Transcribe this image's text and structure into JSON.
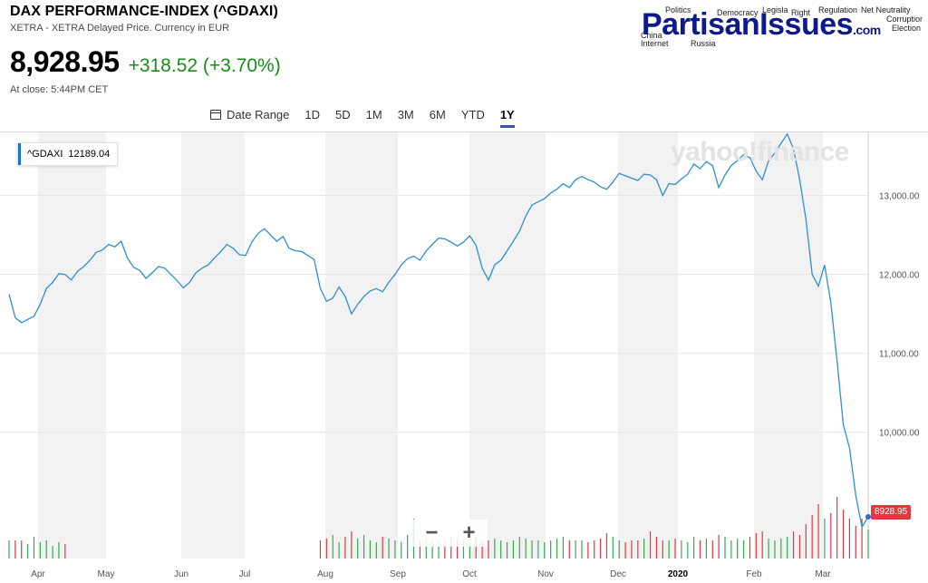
{
  "header": {
    "title": "DAX PERFORMANCE-INDEX (^GDAXI)",
    "subtitle": "XETRA - XETRA Delayed Price. Currency in EUR",
    "price": "8,928.95",
    "change": "+318.52 (+3.70%)",
    "close_note": "At close: 5:44PM CET",
    "change_color": "#1a8c1a"
  },
  "logo": {
    "main": "PartisanIssues",
    "suffix": ".com",
    "tags": [
      "Politics",
      "Democracy",
      "Legisla",
      "Right",
      "Regulation",
      "Net Neutrality",
      "Corruption",
      "Election",
      "China",
      "Internet",
      "Russia"
    ]
  },
  "toolbar": {
    "date_range": "Date Range",
    "ranges": [
      "1D",
      "5D",
      "1M",
      "3M",
      "6M",
      "YTD",
      "1Y"
    ],
    "active": "1Y"
  },
  "legend": {
    "symbol": "^GDAXI",
    "value": "12189.04"
  },
  "watermark": "yahoo!finance",
  "zoom": {
    "minus": "−",
    "plus": "+"
  },
  "current_price_label": "8928.95",
  "chart_data": {
    "type": "line",
    "x_labels": [
      "Apr",
      "May",
      "Jun",
      "Jul",
      "Aug",
      "Sep",
      "Oct",
      "Nov",
      "Dec",
      "2020",
      "Feb",
      "Mar"
    ],
    "y_ticks": [
      "13,000.00",
      "12,000.00",
      "11,000.00",
      "10,000.00"
    ],
    "ylim": [
      8400,
      13800
    ],
    "series": [
      {
        "values": [
          11750,
          11450,
          11390,
          11430,
          11470,
          11620,
          11820,
          11900,
          12010,
          12000,
          11930,
          12040,
          12100,
          12180,
          12280,
          12310,
          12380,
          12350,
          12420,
          12210,
          12090,
          12050,
          11950,
          12020,
          12100,
          12080,
          12000,
          11920,
          11830,
          11900,
          12020,
          12080,
          12120,
          12210,
          12290,
          12380,
          12330,
          12250,
          12240,
          12410,
          12520,
          12580,
          12500,
          12420,
          12480,
          12330,
          12300,
          12290,
          12240,
          12190,
          11820,
          11660,
          11700,
          11840,
          11720,
          11500,
          11620,
          11720,
          11790,
          11820,
          11780,
          11900,
          12000,
          12120,
          12200,
          12230,
          12180,
          12300,
          12380,
          12460,
          12450,
          12410,
          12360,
          12410,
          12490,
          12370,
          12080,
          11930,
          12120,
          12180,
          12300,
          12420,
          12550,
          12740,
          12880,
          12920,
          12960,
          13030,
          13080,
          13150,
          13100,
          13200,
          13240,
          13200,
          13170,
          13110,
          13080,
          13170,
          13280,
          13250,
          13220,
          13190,
          13270,
          13260,
          13200,
          13000,
          13150,
          13140,
          13210,
          13270,
          13400,
          13340,
          13430,
          13380,
          13100,
          13260,
          13380,
          13440,
          13520,
          13480,
          13310,
          13200,
          13440,
          13540,
          13660,
          13780,
          13590,
          13200,
          12700,
          12000,
          11850,
          12120,
          11640,
          10900,
          10100,
          9800,
          9200,
          8800,
          8928.95
        ]
      }
    ],
    "volume": {
      "up_color": "#36a852",
      "down_color": "#e0393e",
      "values": [
        1,
        1,
        1,
        0.8,
        1.2,
        0.9,
        1,
        0.7,
        0.9,
        0.8,
        0,
        0,
        0,
        0,
        0,
        0,
        0,
        0,
        0,
        0,
        0,
        0,
        0,
        0,
        0,
        0,
        0,
        0,
        0,
        0,
        0,
        0,
        0,
        0,
        0,
        0,
        0,
        0,
        0,
        0,
        0,
        0,
        0,
        0,
        0,
        0,
        0,
        0,
        0,
        0,
        1,
        1.1,
        1.3,
        0.9,
        1.2,
        1.5,
        1.1,
        1.3,
        1,
        0.9,
        1.2,
        1.1,
        1,
        0.9,
        1.3,
        2.2,
        1,
        1.1,
        1,
        0.9,
        1,
        1.2,
        1.1,
        1,
        1.4,
        1.2,
        1,
        1,
        1.1,
        1,
        0.9,
        1,
        1.2,
        1.1,
        1,
        1,
        0.9,
        1,
        1.1,
        1.2,
        1,
        1,
        1,
        0.9,
        1,
        1.1,
        1.4,
        1.2,
        1,
        0.9,
        1,
        1,
        1.1,
        1.5,
        1.2,
        1,
        1,
        1.1,
        1,
        0.9,
        1.2,
        1,
        1.1,
        1,
        1.3,
        1.2,
        1,
        1.1,
        1,
        1.2,
        1.4,
        1.5,
        1.1,
        1,
        1.1,
        1.2,
        1.5,
        1.3,
        1.9,
        2.4,
        3,
        2.2,
        2.5,
        3.4,
        2.7,
        2.2,
        1.8,
        2.2,
        1.6
      ]
    }
  }
}
